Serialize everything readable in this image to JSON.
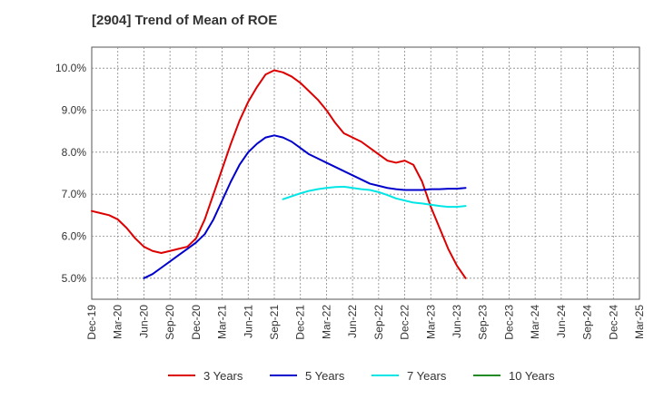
{
  "chart_data": {
    "type": "line",
    "title": "[2904]  Trend of Mean of ROE",
    "xlabel": "",
    "ylabel": "",
    "ylim": [
      4.5,
      10.5
    ],
    "y_ticks": [
      5.0,
      6.0,
      7.0,
      8.0,
      9.0,
      10.0
    ],
    "y_tick_labels": [
      "5.0%",
      "6.0%",
      "7.0%",
      "8.0%",
      "9.0%",
      "10.0%"
    ],
    "x_tick_labels": [
      "Dec-19",
      "Mar-20",
      "Jun-20",
      "Sep-20",
      "Dec-20",
      "Mar-21",
      "Jun-21",
      "Sep-21",
      "Dec-21",
      "Mar-22",
      "Jun-22",
      "Sep-22",
      "Dec-22",
      "Mar-23",
      "Jun-23",
      "Sep-23",
      "Dec-23",
      "Mar-24",
      "Jun-24",
      "Sep-24",
      "Dec-24",
      "Mar-25"
    ],
    "grid": true,
    "legend_position": "bottom",
    "series": [
      {
        "name": "3 Years",
        "color": "#dd0000",
        "start_index": 0,
        "values": [
          6.6,
          6.55,
          6.5,
          6.4,
          6.2,
          5.95,
          5.75,
          5.65,
          5.6,
          5.65,
          5.7,
          5.75,
          5.95,
          6.4,
          7.0,
          7.6,
          8.2,
          8.75,
          9.2,
          9.55,
          9.85,
          9.95,
          9.9,
          9.8,
          9.65,
          9.45,
          9.25,
          9.0,
          8.7,
          8.45,
          8.35,
          8.25,
          8.1,
          7.95,
          7.8,
          7.75,
          7.8,
          7.7,
          7.3,
          6.7,
          6.2,
          5.7,
          5.3,
          5.0
        ]
      },
      {
        "name": "5 Years",
        "color": "#0000cc",
        "start_index": 6,
        "values": [
          5.0,
          5.1,
          5.25,
          5.4,
          5.55,
          5.7,
          5.85,
          6.05,
          6.4,
          6.85,
          7.3,
          7.7,
          8.0,
          8.2,
          8.35,
          8.4,
          8.35,
          8.25,
          8.1,
          7.95,
          7.85,
          7.75,
          7.65,
          7.55,
          7.45,
          7.35,
          7.25,
          7.2,
          7.15,
          7.12,
          7.1,
          7.1,
          7.1,
          7.12,
          7.12,
          7.13,
          7.13,
          7.15
        ]
      },
      {
        "name": "7 Years",
        "color": "#00e5e5",
        "start_index": 22,
        "values": [
          6.88,
          6.95,
          7.02,
          7.08,
          7.12,
          7.15,
          7.17,
          7.18,
          7.15,
          7.12,
          7.1,
          7.05,
          6.98,
          6.9,
          6.85,
          6.8,
          6.78,
          6.75,
          6.72,
          6.7,
          6.7,
          6.72
        ]
      },
      {
        "name": "10 Years",
        "color": "#228b22",
        "start_index": 0,
        "values": []
      }
    ]
  }
}
